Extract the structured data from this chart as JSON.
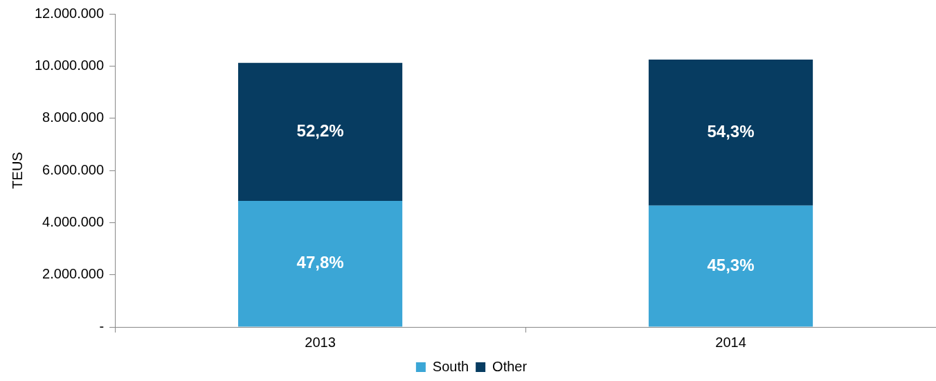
{
  "chart_data": {
    "type": "bar",
    "stacked": true,
    "ylabel": "TEUS",
    "categories": [
      "2013",
      "2014"
    ],
    "series": [
      {
        "name": "South",
        "color": "#3ba6d6",
        "values": [
          4830000,
          4650000
        ]
      },
      {
        "name": "Other",
        "color": "#073c61",
        "values": [
          5290000,
          5600000
        ]
      }
    ],
    "annotations": [
      "47,8%",
      "45,3%",
      "52,2%",
      "54,3%"
    ],
    "ylim": [
      0,
      12000000
    ],
    "yticks": [
      {
        "value": 0,
        "label": "-"
      },
      {
        "value": 2000000,
        "label": "2.000.000"
      },
      {
        "value": 4000000,
        "label": "4.000.000"
      },
      {
        "value": 6000000,
        "label": "6.000.000"
      },
      {
        "value": 8000000,
        "label": "8.000.000"
      },
      {
        "value": 10000000,
        "label": "10.000.000"
      },
      {
        "value": 12000000,
        "label": "12.000.000"
      }
    ],
    "legend": "bottom"
  }
}
